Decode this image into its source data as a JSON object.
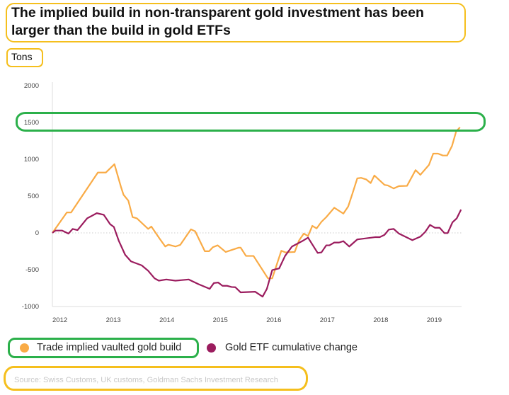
{
  "title": "The implied build in non-transparent gold investment has been larger than the build in gold ETFs",
  "unit": "Tons",
  "source": "Source: Swiss Customs, UK customs, Goldman Sachs Investment Research",
  "chart_data": {
    "type": "line",
    "title": "The implied build in non-transparent gold investment has been larger than the build in gold ETFs",
    "ylabel": "Tons",
    "ylim": [
      -1000,
      2000
    ],
    "yticks": [
      2000,
      1500,
      1000,
      500,
      0,
      -500,
      -1000
    ],
    "xticks": [
      "2012",
      "2013",
      "2014",
      "2015",
      "2016",
      "2017",
      "2018",
      "2019"
    ],
    "xlim": [
      2012.0,
      2019.65
    ],
    "zero_line": "dotted",
    "grid": false,
    "legend": "bottom",
    "series": [
      {
        "name": "Trade implied vaulted gold build",
        "color": "#f9ab46",
        "points": [
          [
            2012.0,
            0
          ],
          [
            2012.27,
            278
          ],
          [
            2012.35,
            278
          ],
          [
            2012.85,
            820
          ],
          [
            2013.0,
            820
          ],
          [
            2013.16,
            933
          ],
          [
            2013.28,
            630
          ],
          [
            2013.33,
            518
          ],
          [
            2013.42,
            438
          ],
          [
            2013.5,
            214
          ],
          [
            2013.58,
            198
          ],
          [
            2013.79,
            54
          ],
          [
            2013.85,
            86
          ],
          [
            2014.0,
            -73
          ],
          [
            2014.11,
            -185
          ],
          [
            2014.17,
            -160
          ],
          [
            2014.3,
            -185
          ],
          [
            2014.39,
            -163
          ],
          [
            2014.59,
            48
          ],
          [
            2014.67,
            22
          ],
          [
            2014.85,
            -249
          ],
          [
            2014.93,
            -249
          ],
          [
            2015.0,
            -195
          ],
          [
            2015.09,
            -169
          ],
          [
            2015.24,
            -259
          ],
          [
            2015.48,
            -201
          ],
          [
            2015.52,
            -201
          ],
          [
            2015.62,
            -313
          ],
          [
            2015.76,
            -313
          ],
          [
            2016.03,
            -617
          ],
          [
            2016.11,
            -617
          ],
          [
            2016.28,
            -243
          ],
          [
            2016.36,
            -265
          ],
          [
            2016.53,
            -259
          ],
          [
            2016.61,
            -105
          ],
          [
            2016.7,
            -10
          ],
          [
            2016.78,
            -42
          ],
          [
            2016.86,
            96
          ],
          [
            2016.94,
            61
          ],
          [
            2017.03,
            150
          ],
          [
            2017.12,
            214
          ],
          [
            2017.27,
            342
          ],
          [
            2017.44,
            262
          ],
          [
            2017.53,
            358
          ],
          [
            2017.61,
            534
          ],
          [
            2017.7,
            741
          ],
          [
            2017.77,
            748
          ],
          [
            2017.87,
            725
          ],
          [
            2017.95,
            677
          ],
          [
            2018.02,
            780
          ],
          [
            2018.21,
            652
          ],
          [
            2018.27,
            645
          ],
          [
            2018.38,
            604
          ],
          [
            2018.48,
            636
          ],
          [
            2018.63,
            639
          ],
          [
            2018.79,
            853
          ],
          [
            2018.88,
            789
          ],
          [
            2019.04,
            923
          ],
          [
            2019.12,
            1077
          ],
          [
            2019.21,
            1077
          ],
          [
            2019.3,
            1051
          ],
          [
            2019.38,
            1051
          ],
          [
            2019.47,
            1179
          ],
          [
            2019.55,
            1380
          ],
          [
            2019.62,
            1434
          ]
        ]
      },
      {
        "name": "Gold ETF cumulative change",
        "color": "#9b1c5e",
        "points": [
          [
            2012.0,
            0
          ],
          [
            2012.06,
            32
          ],
          [
            2012.18,
            32
          ],
          [
            2012.3,
            -10
          ],
          [
            2012.38,
            54
          ],
          [
            2012.47,
            38
          ],
          [
            2012.65,
            198
          ],
          [
            2012.83,
            268
          ],
          [
            2012.96,
            246
          ],
          [
            2013.08,
            118
          ],
          [
            2013.15,
            80
          ],
          [
            2013.24,
            -105
          ],
          [
            2013.36,
            -297
          ],
          [
            2013.47,
            -387
          ],
          [
            2013.67,
            -441
          ],
          [
            2013.79,
            -514
          ],
          [
            2013.91,
            -617
          ],
          [
            2013.99,
            -649
          ],
          [
            2014.13,
            -633
          ],
          [
            2014.3,
            -649
          ],
          [
            2014.55,
            -633
          ],
          [
            2014.73,
            -696
          ],
          [
            2014.94,
            -760
          ],
          [
            2015.02,
            -681
          ],
          [
            2015.1,
            -674
          ],
          [
            2015.18,
            -719
          ],
          [
            2015.27,
            -719
          ],
          [
            2015.35,
            -735
          ],
          [
            2015.42,
            -738
          ],
          [
            2015.52,
            -808
          ],
          [
            2015.79,
            -799
          ],
          [
            2015.93,
            -866
          ],
          [
            2016.01,
            -760
          ],
          [
            2016.11,
            -505
          ],
          [
            2016.24,
            -482
          ],
          [
            2016.35,
            -313
          ],
          [
            2016.48,
            -185
          ],
          [
            2016.67,
            -112
          ],
          [
            2016.78,
            -64
          ],
          [
            2016.87,
            -169
          ],
          [
            2016.96,
            -272
          ],
          [
            2017.03,
            -265
          ],
          [
            2017.12,
            -169
          ],
          [
            2017.18,
            -169
          ],
          [
            2017.27,
            -131
          ],
          [
            2017.36,
            -131
          ],
          [
            2017.44,
            -112
          ],
          [
            2017.55,
            -185
          ],
          [
            2017.7,
            -89
          ],
          [
            2018.03,
            -58
          ],
          [
            2018.12,
            -58
          ],
          [
            2018.21,
            -26
          ],
          [
            2018.29,
            45
          ],
          [
            2018.38,
            54
          ],
          [
            2018.48,
            -10
          ],
          [
            2018.73,
            -99
          ],
          [
            2018.88,
            -51
          ],
          [
            2018.97,
            13
          ],
          [
            2019.06,
            109
          ],
          [
            2019.15,
            70
          ],
          [
            2019.24,
            70
          ],
          [
            2019.33,
            -3
          ],
          [
            2019.39,
            -3
          ],
          [
            2019.48,
            144
          ],
          [
            2019.56,
            198
          ],
          [
            2019.64,
            316
          ]
        ]
      }
    ]
  }
}
